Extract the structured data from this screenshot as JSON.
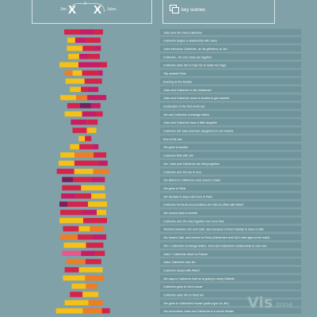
{
  "header": {
    "left_name": "Jim",
    "right_name": "Jules",
    "x_left": "X",
    "x_right": "X",
    "three": "3",
    "key_label": "key scenes"
  },
  "watermark": {
    "vis": "Vis",
    "zone": "zone"
  },
  "colors": {
    "background": "#7fa1a7",
    "crimson": "#d6234a",
    "magenta": "#c81d64",
    "purple": "#7a1f5c",
    "yellow": "#f5c018",
    "orange": "#ef7d22",
    "pink": "#e8588a",
    "label_bar": "#6f949b"
  },
  "chart_data": {
    "type": "bar",
    "scenes": [
      "Jules and Jim meet Catherine",
      "Catherine begins a relationship with Jules",
      "Jules introduce Catherine, as his girlfriend, to Jim",
      "Catherine, Jim and Jules are together",
      "Catherine asks Jim to help her to make her bags",
      "Trip outside Paris",
      "Evening at the theatre",
      "Jules and Catherine in the restaurant",
      "Jules and Catherine move to Austria to get married",
      "Declaration of the first world war",
      "Jim and Catherine exchange letters",
      "Jules and Catherine have a little daughter",
      "Catherine left Jules and then daughters for six months",
      "End of the war",
      "Jim goes to Austria",
      "Catherine flirts with Jim",
      "Jim, Jules and Catherine are living together",
      "Catherine and Jim are in love",
      "Jim listens to Catherine's and Jules's Chalet",
      "Jim goes to Paris",
      "Jim decides to stay a bit more in Paris",
      "Catherine torments and punishes Jim with an affair with Albert",
      "Jim comes back to Austria",
      "Catherine and Jim stay together one more time",
      "Tensions between Jim and Cath, also because of their inability to have a child",
      "Jim leaves Cath. and returns to Paris (Catherine's and Jim's last night at the hotel)",
      "Jim + Catherine exchange letters. Jim's and Catherine's relationship is now over",
      "Jules + Catherine return to France",
      "Jules, Catherine and Jim",
      "Catherine sleeps with Albert",
      "Jim says to Catherine that he is going to marry Gilberte",
      "Catherine goes to Jim's house",
      "Catherine asks Jim to meet her",
      "Jim goes to Catherine's house (pulls a gun on Jim)",
      "Jim encounters Jules and Catherine in a movie theater"
    ],
    "segments": [
      [
        [
          "crimson",
          20
        ],
        [
          "magenta",
          18
        ],
        [
          "crimson",
          11
        ]
      ],
      [
        [
          "yellow",
          10
        ],
        [
          "magenta",
          14
        ],
        [
          "crimson",
          18
        ]
      ],
      [
        [
          "yellow",
          20
        ],
        [
          "crimson",
          14
        ],
        [
          "magenta",
          9
        ]
      ],
      [
        [
          "yellow",
          14
        ],
        [
          "magenta",
          10
        ],
        [
          "crimson",
          16
        ]
      ],
      [
        [
          "yellow",
          24
        ],
        [
          "magenta",
          28
        ],
        [
          "crimson",
          8
        ]
      ],
      [
        [
          "orange",
          10
        ],
        [
          "yellow",
          12
        ],
        [
          "crimson",
          20
        ],
        [
          "magenta",
          6
        ]
      ],
      [
        [
          "yellow",
          24
        ],
        [
          "crimson",
          22
        ]
      ],
      [
        [
          "yellow",
          14
        ],
        [
          "crimson",
          8
        ],
        [
          "magenta",
          14
        ]
      ],
      [
        [
          "yellow",
          20
        ],
        [
          "orange",
          14
        ],
        [
          "magenta",
          24
        ]
      ],
      [
        [
          "crimson",
          16
        ],
        [
          "purple",
          14
        ],
        [
          "magenta",
          12
        ]
      ],
      [
        [
          "yellow",
          22
        ],
        [
          "magenta",
          18
        ],
        [
          "crimson",
          8
        ]
      ],
      [
        [
          "magenta",
          20
        ],
        [
          "crimson",
          14
        ]
      ],
      [
        [
          "crimson",
          18
        ],
        [
          "yellow",
          12
        ]
      ],
      [
        [
          "yellow",
          8
        ],
        [
          "crimson",
          8
        ]
      ],
      [
        [
          "yellow",
          12
        ],
        [
          "crimson",
          16
        ],
        [
          "magenta",
          8
        ]
      ],
      [
        [
          "yellow",
          18
        ],
        [
          "orange",
          24
        ],
        [
          "crimson",
          16
        ]
      ],
      [
        [
          "yellow",
          20
        ],
        [
          "crimson",
          30
        ],
        [
          "magenta",
          12
        ]
      ],
      [
        [
          "crimson",
          22
        ],
        [
          "yellow",
          24
        ],
        [
          "orange",
          20
        ]
      ],
      [
        [
          "purple",
          14
        ],
        [
          "crimson",
          22
        ],
        [
          "magenta",
          18
        ]
      ],
      [
        [
          "crimson",
          24
        ],
        [
          "yellow",
          30
        ]
      ],
      [
        [
          "magenta",
          18
        ],
        [
          "crimson",
          20
        ],
        [
          "yellow",
          18
        ]
      ],
      [
        [
          "purple",
          10
        ],
        [
          "crimson",
          26
        ],
        [
          "yellow",
          24
        ]
      ],
      [
        [
          "crimson",
          26
        ],
        [
          "magenta",
          20
        ],
        [
          "yellow",
          12
        ]
      ],
      [
        [
          "yellow",
          30
        ],
        [
          "crimson",
          30
        ]
      ],
      [
        [
          "crimson",
          20
        ],
        [
          "yellow",
          14
        ],
        [
          "orange",
          18
        ]
      ],
      [
        [
          "orange",
          22
        ],
        [
          "crimson",
          18
        ],
        [
          "magenta",
          18
        ]
      ],
      [
        [
          "yellow",
          28
        ],
        [
          "crimson",
          22
        ]
      ],
      [
        [
          "pink",
          24
        ],
        [
          "magenta",
          18
        ],
        [
          "crimson",
          12
        ]
      ],
      [
        [
          "orange",
          24
        ],
        [
          "crimson",
          20
        ]
      ],
      [
        [
          "crimson",
          18
        ],
        [
          "yellow",
          30
        ]
      ],
      [
        [
          "yellow",
          28
        ],
        [
          "orange",
          24
        ]
      ],
      [
        [
          "yellow",
          18
        ],
        [
          "orange",
          14
        ]
      ],
      [
        [
          "crimson",
          16
        ],
        [
          "yellow",
          20
        ]
      ],
      [
        [
          "yellow",
          30
        ],
        [
          "orange",
          18
        ]
      ],
      [
        [
          "yellow",
          34
        ],
        [
          "orange",
          24
        ],
        [
          "crimson",
          10
        ]
      ]
    ]
  }
}
